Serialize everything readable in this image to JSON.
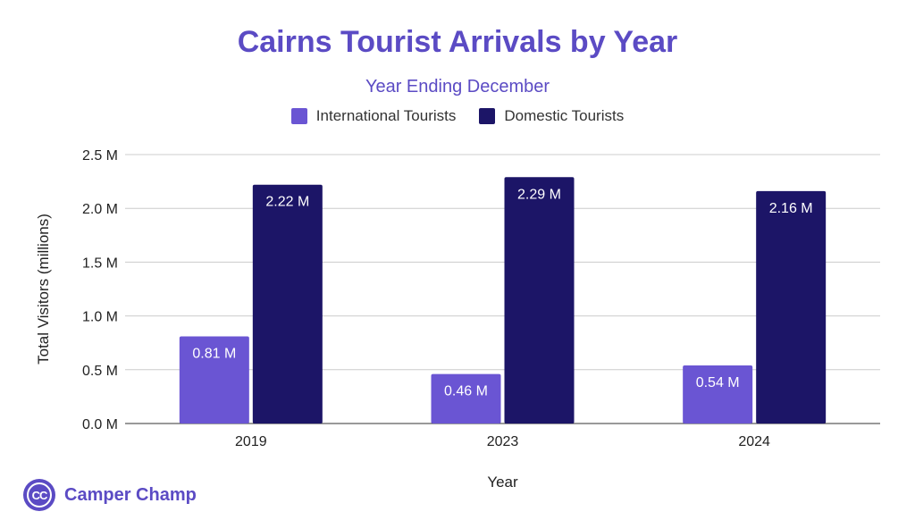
{
  "colors": {
    "international": "#6a55d3",
    "domestic": "#1c1567",
    "title": "#5b4bc4"
  },
  "chart_data": {
    "type": "bar",
    "title": "Cairns Tourist Arrivals by Year",
    "subtitle": "Year Ending December",
    "xlabel": "Year",
    "ylabel": "Total Visitors (millions)",
    "ylim": [
      0,
      2.5
    ],
    "yticks": [
      {
        "value": 0.0,
        "label": "0.0 M"
      },
      {
        "value": 0.5,
        "label": "0.5 M"
      },
      {
        "value": 1.0,
        "label": "1.0 M"
      },
      {
        "value": 1.5,
        "label": "1.5 M"
      },
      {
        "value": 2.0,
        "label": "2.0 M"
      },
      {
        "value": 2.5,
        "label": "2.5 M"
      }
    ],
    "grid": true,
    "legend_position": "top",
    "categories": [
      "2019",
      "2023",
      "2024"
    ],
    "series": [
      {
        "name": "International Tourists",
        "values": [
          0.81,
          0.46,
          0.54
        ],
        "labels": [
          "0.81 M",
          "0.46 M",
          "0.54 M"
        ]
      },
      {
        "name": "Domestic Tourists",
        "values": [
          2.22,
          2.29,
          2.16
        ],
        "labels": [
          "2.22 M",
          "2.29 M",
          "2.16 M"
        ]
      }
    ]
  },
  "brand": {
    "logo_text": "CC",
    "name": "Camper Champ",
    "logo_icon": "cc-logo-icon"
  }
}
